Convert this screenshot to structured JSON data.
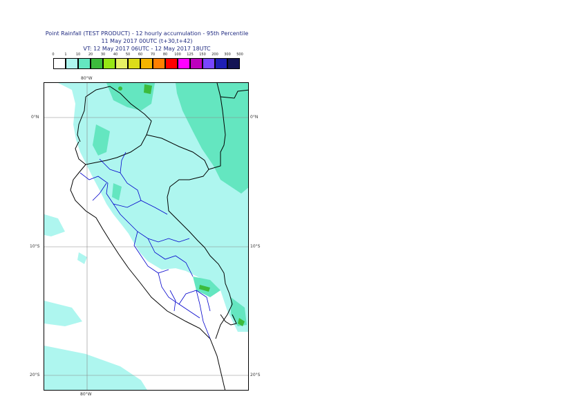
{
  "title": {
    "line1": "Point Rainfall (TEST PRODUCT) - 12 hourly accumulation - 95th Percentile",
    "line2": "11 May 2017 00UTC (t+30,t+42)",
    "line3": "VT: 12 May 2017 06UTC - 12 May 2017 18UTC"
  },
  "legend": {
    "labels": [
      "0",
      "1",
      "10",
      "20",
      "30",
      "40",
      "50",
      "60",
      "70",
      "80",
      "100",
      "125",
      "150",
      "200",
      "300",
      "500"
    ],
    "colors": [
      "#ffffff",
      "#aef6ef",
      "#64e6c0",
      "#3cbb3c",
      "#96e614",
      "#e6f064",
      "#dcdc19",
      "#f5b400",
      "#ff7f00",
      "#ff0000",
      "#ff00ff",
      "#be00be",
      "#7846ff",
      "#1e1eb4",
      "#141455"
    ]
  },
  "map": {
    "lon_labels": {
      "top": "80°W",
      "bottom": "80°W"
    },
    "lat_labels": [
      "0°N",
      "10°S",
      "20°S"
    ]
  },
  "colors": {
    "light_rain": "#aef6ef",
    "moderate_rain": "#64e6c0",
    "heavy_rain": "#3cbb3c",
    "country_border": "#000000",
    "region_border": "#0000cc",
    "gridline": "#888888"
  }
}
